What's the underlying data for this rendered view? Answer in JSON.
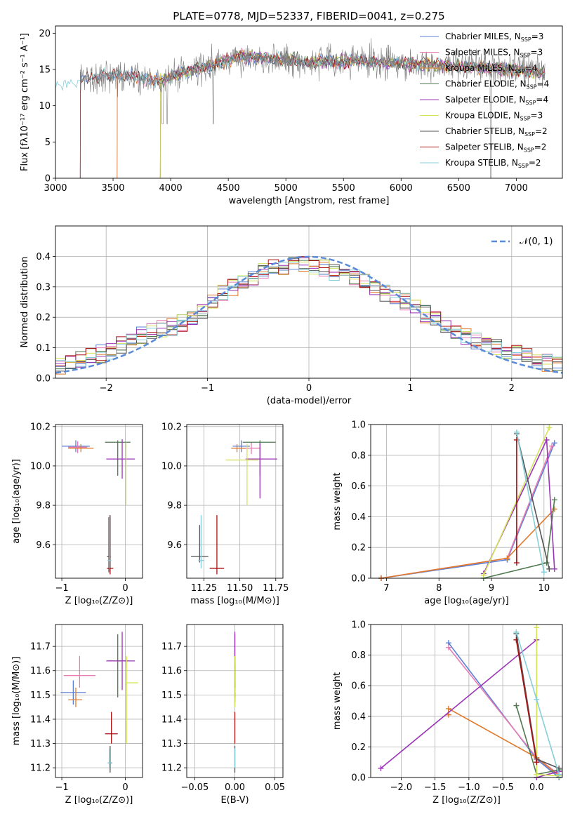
{
  "colors": {
    "chabrier_miles": "#5b7fd4",
    "salpeter_miles": "#e87db5",
    "kroupa_miles": "#e07a2c",
    "chabrier_elodie": "#4f7a4f",
    "salpeter_elodie": "#9b34b5",
    "kroupa_elodie": "#d5e35a",
    "chabrier_stelib": "#555555",
    "salpeter_stelib": "#aa1111",
    "kroupa_stelib": "#86cfd9",
    "normal": "#5b8ad8",
    "grid": "#b0b0b0"
  },
  "chart_data": [
    {
      "id": "spectrum",
      "type": "line",
      "title": "PLATE=0778, MJD=52337, FIBERID=0041, z=0.275",
      "xlabel": "wavelength [Angstrom, rest frame]",
      "ylabel": "Flux [fλ10⁻¹⁷ erg cm⁻² s⁻¹ A⁻¹]",
      "xlim": [
        3000,
        7400
      ],
      "ylim": [
        0,
        21
      ],
      "xticks": [
        "3000",
        "3500",
        "4000",
        "4500",
        "5000",
        "5500",
        "6000",
        "6500",
        "7000"
      ],
      "yticks": [
        "0",
        "5",
        "10",
        "15",
        "20"
      ],
      "grid": false,
      "legend_position": "upper-right",
      "series": [
        {
          "name": "Chabrier MILES, N_SSP=3",
          "legend": "Chabrier MILES, N",
          "sub": "SSP",
          "tail": "=3",
          "start": 3215
        },
        {
          "name": "Salpeter MILES, N_SSP=3",
          "legend": "Salpeter MILES, N",
          "sub": "SSP",
          "tail": "=3",
          "start": 3535
        },
        {
          "name": "Kroupa MILES, N_SSP=4",
          "legend": "Kroupa MILES, N",
          "sub": "SSP",
          "tail": "=4",
          "start": 3535
        },
        {
          "name": "Chabrier ELODIE, N_SSP=4",
          "legend": "Chabrier ELODIE, N",
          "sub": "SSP",
          "tail": "=4",
          "start": 3910
        },
        {
          "name": "Salpeter ELODIE, N_SSP=4",
          "legend": "Salpeter ELODIE, N",
          "sub": "SSP",
          "tail": "=4",
          "start": 3910
        },
        {
          "name": "Kroupa ELODIE, N_SSP=3",
          "legend": "Kroupa ELODIE, N",
          "sub": "SSP",
          "tail": "=3",
          "start": 3910
        },
        {
          "name": "Chabrier STELIB, N_SSP=2",
          "legend": "Chabrier STELIB, N",
          "sub": "SSP",
          "tail": "=2",
          "start": 3215
        },
        {
          "name": "Salpeter STELIB, N_SSP=2",
          "legend": "Salpeter STELIB, N",
          "sub": "SSP",
          "tail": "=2",
          "start": 3215
        },
        {
          "name": "Kroupa STELIB, N_SSP=2",
          "legend": "Kroupa STELIB, N",
          "sub": "SSP",
          "tail": "=2",
          "start": 3000
        }
      ],
      "continuum": [
        [
          3000,
          12.8
        ],
        [
          3200,
          13.5
        ],
        [
          3400,
          14.2
        ],
        [
          3700,
          14.0
        ],
        [
          3900,
          13.5
        ],
        [
          4100,
          14.5
        ],
        [
          4400,
          15.8
        ],
        [
          4600,
          16.8
        ],
        [
          4900,
          16.5
        ],
        [
          5200,
          16.0
        ],
        [
          5600,
          16.2
        ],
        [
          6000,
          15.8
        ],
        [
          6400,
          15.6
        ],
        [
          6800,
          15.2
        ],
        [
          7250,
          14.6
        ]
      ],
      "data_start": 3215,
      "data_end": 7250
    },
    {
      "id": "residuals",
      "type": "histogram",
      "xlabel": "(data-model)/error",
      "ylabel": "Normed distribution",
      "xlim": [
        -2.5,
        2.5
      ],
      "ylim": [
        0,
        0.5
      ],
      "xticks": [
        "-2",
        "-1",
        "0",
        "1",
        "2"
      ],
      "yticks": [
        "0.0",
        "0.1",
        "0.2",
        "0.3",
        "0.4"
      ],
      "grid": true,
      "legend_position": "upper-right",
      "legend": "𝒩(0, 1)",
      "bin_width": 0.1,
      "bin_centers": [
        -2.45,
        -2.35,
        -2.25,
        -2.15,
        -2.05,
        -1.95,
        -1.85,
        -1.75,
        -1.65,
        -1.55,
        -1.45,
        -1.35,
        -1.25,
        -1.15,
        -1.05,
        -0.95,
        -0.85,
        -0.75,
        -0.65,
        -0.55,
        -0.45,
        -0.35,
        -0.25,
        -0.15,
        -0.05,
        0.05,
        0.15,
        0.25,
        0.35,
        0.45,
        0.55,
        0.65,
        0.75,
        0.85,
        0.95,
        1.05,
        1.15,
        1.25,
        1.35,
        1.45,
        1.55,
        1.65,
        1.75,
        1.85,
        1.95,
        2.05,
        2.15,
        2.25,
        2.35,
        2.45
      ],
      "base_hist": [
        0.04,
        0.05,
        0.06,
        0.07,
        0.08,
        0.09,
        0.11,
        0.12,
        0.14,
        0.15,
        0.16,
        0.17,
        0.18,
        0.19,
        0.22,
        0.25,
        0.28,
        0.3,
        0.31,
        0.33,
        0.35,
        0.36,
        0.37,
        0.38,
        0.37,
        0.36,
        0.36,
        0.35,
        0.34,
        0.33,
        0.32,
        0.3,
        0.28,
        0.27,
        0.25,
        0.23,
        0.21,
        0.19,
        0.17,
        0.15,
        0.14,
        0.12,
        0.11,
        0.1,
        0.09,
        0.08,
        0.07,
        0.06,
        0.05,
        0.04
      ]
    },
    {
      "id": "age_vs_Z",
      "type": "errorbar",
      "xlabel": "Z [log₁₀(Z/Z⊙)]",
      "ylabel": "age  [log₁₀(age/yr)]",
      "xlim": [
        -1.1,
        0.27
      ],
      "ylim": [
        9.43,
        10.21
      ],
      "xticks": [
        "-1",
        "0"
      ],
      "yticks": [
        "9.6",
        "9.8",
        "10.0",
        "10.2"
      ],
      "grid": true,
      "points": [
        {
          "s": 0,
          "x": -0.78,
          "y": 10.1,
          "xerr": [
            0.22,
            0.22
          ],
          "yerr": [
            0.03,
            0.03
          ]
        },
        {
          "s": 1,
          "x": -0.75,
          "y": 10.095,
          "xerr": [
            0.15,
            0.15
          ],
          "yerr": [
            0.03,
            0.03
          ]
        },
        {
          "s": 2,
          "x": -0.7,
          "y": 10.09,
          "xerr": [
            0.2,
            0.2
          ],
          "yerr": [
            0.02,
            0.02
          ]
        },
        {
          "s": 3,
          "x": -0.12,
          "y": 10.12,
          "xerr": [
            0.2,
            0.2
          ],
          "yerr": [
            0.17,
            0.01
          ]
        },
        {
          "s": 4,
          "x": -0.05,
          "y": 10.035,
          "xerr": [
            0.25,
            0.2
          ],
          "yerr": [
            0.1,
            0.1
          ]
        },
        {
          "s": 5,
          "x": 0.01,
          "y": 10.1,
          "xerr": [
            0.01,
            0.01
          ],
          "yerr": [
            0.3,
            0.02
          ]
        },
        {
          "s": 6,
          "x": -0.26,
          "y": 9.54,
          "xerr": [
            0.03,
            0.03
          ],
          "yerr": [
            0.08,
            0.2
          ]
        },
        {
          "s": 7,
          "x": -0.24,
          "y": 9.48,
          "xerr": [
            0.05,
            0.05
          ],
          "yerr": [
            0.03,
            0.27
          ]
        },
        {
          "s": 8,
          "x": -0.25,
          "y": 9.52,
          "xerr": [
            0.03,
            0.03
          ],
          "yerr": [
            0.04,
            0.23
          ]
        }
      ]
    },
    {
      "id": "age_vs_mass",
      "type": "errorbar",
      "xlabel": "mass [log₁₀(M/M⊙)]",
      "ylabel": "",
      "xlim": [
        11.13,
        11.8
      ],
      "ylim": [
        9.43,
        10.21
      ],
      "xticks": [
        "11.25",
        "11.50",
        "11.75"
      ],
      "yticks": [
        "9.6",
        "9.8",
        "10.0",
        "10.2"
      ],
      "grid": true,
      "points": [
        {
          "s": 0,
          "x": 11.51,
          "y": 10.1,
          "xerr": [
            0.06,
            0.06
          ],
          "yerr": [
            0.03,
            0.03
          ]
        },
        {
          "s": 1,
          "x": 11.58,
          "y": 10.09,
          "xerr": [
            0.06,
            0.06
          ],
          "yerr": [
            0.03,
            0.03
          ]
        },
        {
          "s": 2,
          "x": 11.48,
          "y": 10.09,
          "xerr": [
            0.04,
            0.06
          ],
          "yerr": [
            0.02,
            0.02
          ]
        },
        {
          "s": 3,
          "x": 11.64,
          "y": 10.12,
          "xerr": [
            0.12,
            0.11
          ],
          "yerr": [
            0.17,
            0.01
          ]
        },
        {
          "s": 4,
          "x": 11.64,
          "y": 10.035,
          "xerr": [
            0.1,
            0.12
          ],
          "yerr": [
            0.2,
            0.08
          ]
        },
        {
          "s": 5,
          "x": 11.55,
          "y": 10.03,
          "xerr": [
            0.15,
            0.08
          ],
          "yerr": [
            0.23,
            0.08
          ]
        },
        {
          "s": 6,
          "x": 11.22,
          "y": 9.54,
          "xerr": [
            0.06,
            0.06
          ],
          "yerr": [
            0.03,
            0.16
          ]
        },
        {
          "s": 7,
          "x": 11.34,
          "y": 9.48,
          "xerr": [
            0.05,
            0.05
          ],
          "yerr": [
            0.03,
            0.27
          ]
        },
        {
          "s": 8,
          "x": 11.23,
          "y": 9.52,
          "xerr": [
            0.02,
            0.02
          ],
          "yerr": [
            0.04,
            0.23
          ]
        }
      ]
    },
    {
      "id": "mass_weight_vs_age",
      "type": "line",
      "xlabel": "age  [log₁₀(age/yr)]",
      "ylabel": "mass weight",
      "xlim": [
        6.7,
        10.35
      ],
      "ylim": [
        0,
        1
      ],
      "xticks": [
        "7",
        "8",
        "9",
        "10"
      ],
      "yticks": [
        "0.0",
        "0.2",
        "0.4",
        "0.6",
        "0.8",
        "1.0"
      ],
      "grid": true,
      "series": [
        {
          "s": 0,
          "x": [
            6.9,
            9.3,
            10.2
          ],
          "y": [
            0.0,
            0.12,
            0.88
          ]
        },
        {
          "s": 1,
          "x": [
            6.9,
            9.3,
            10.15
          ],
          "y": [
            0.0,
            0.13,
            0.86
          ]
        },
        {
          "s": 2,
          "x": [
            6.9,
            9.3,
            10.2
          ],
          "y": [
            0.0,
            0.13,
            0.45
          ]
        },
        {
          "s": 3,
          "x": [
            8.85,
            10.05,
            10.2
          ],
          "y": [
            0.0,
            0.1,
            0.51
          ]
        },
        {
          "s": 4,
          "x": [
            8.85,
            10.05,
            10.2
          ],
          "y": [
            0.03,
            0.9,
            0.06
          ]
        },
        {
          "s": 5,
          "x": [
            8.85,
            10.1
          ],
          "y": [
            0.02,
            0.98
          ]
        },
        {
          "s": 6,
          "x": [
            9.48,
            10.1
          ],
          "y": [
            0.94,
            0.06
          ]
        },
        {
          "s": 7,
          "x": [
            9.48,
            9.48
          ],
          "y": [
            0.9,
            0.1
          ]
        },
        {
          "s": 8,
          "x": [
            9.48,
            10.0
          ],
          "y": [
            0.95,
            0.04
          ]
        }
      ]
    },
    {
      "id": "mass_vs_Z",
      "type": "errorbar",
      "xlabel": "Z [log₁₀(Z/Z⊙)]",
      "ylabel": "mass [log₁₀(M/M⊙)]",
      "xlim": [
        -1.1,
        0.27
      ],
      "ylim": [
        11.16,
        11.79
      ],
      "xticks": [
        "-1",
        "0"
      ],
      "yticks": [
        "11.2",
        "11.3",
        "11.4",
        "11.5",
        "11.6",
        "11.7"
      ],
      "grid": true,
      "points": [
        {
          "s": 0,
          "x": -0.82,
          "y": 11.51,
          "xerr": [
            0.2,
            0.2
          ],
          "yerr": [
            0.05,
            0.05
          ]
        },
        {
          "s": 1,
          "x": -0.72,
          "y": 11.58,
          "xerr": [
            0.25,
            0.25
          ],
          "yerr": [
            0.05,
            0.08
          ]
        },
        {
          "s": 2,
          "x": -0.78,
          "y": 11.48,
          "xerr": [
            0.12,
            0.1
          ],
          "yerr": [
            0.03,
            0.05
          ]
        },
        {
          "s": 3,
          "x": -0.12,
          "y": 11.64,
          "xerr": [
            0.15,
            0.15
          ],
          "yerr": [
            0.15,
            0.11
          ]
        },
        {
          "s": 4,
          "x": -0.05,
          "y": 11.64,
          "xerr": [
            0.25,
            0.2
          ],
          "yerr": [
            0.12,
            0.12
          ]
        },
        {
          "s": 5,
          "x": 0.02,
          "y": 11.55,
          "xerr": [
            0.02,
            0.18
          ],
          "yerr": [
            0.25,
            0.11
          ]
        },
        {
          "s": 6,
          "x": -0.24,
          "y": 11.22,
          "xerr": [
            0.03,
            0.03
          ],
          "yerr": [
            0.04,
            0.07
          ]
        },
        {
          "s": 7,
          "x": -0.22,
          "y": 11.34,
          "xerr": [
            0.1,
            0.1
          ],
          "yerr": [
            0.04,
            0.09
          ]
        },
        {
          "s": 8,
          "x": -0.25,
          "y": 11.22,
          "xerr": [
            0.03,
            0.03
          ],
          "yerr": [
            0.02,
            0.06
          ]
        }
      ]
    },
    {
      "id": "mass_vs_EBV",
      "type": "errorbar",
      "xlabel": "E(B-V)",
      "ylabel": "",
      "xlim": [
        -0.06,
        0.06
      ],
      "ylim": [
        11.16,
        11.79
      ],
      "xticks": [
        "-0.05",
        "0.00",
        "0.05"
      ],
      "yticks": [
        "11.2",
        "11.3",
        "11.4",
        "11.5",
        "11.6",
        "11.7"
      ],
      "grid": true,
      "points": [
        {
          "s": 0,
          "x": 0,
          "y": 11.51,
          "xerr": [
            0,
            0
          ],
          "yerr": [
            0.04,
            0.04
          ]
        },
        {
          "s": 1,
          "x": 0,
          "y": 11.58,
          "xerr": [
            0,
            0
          ],
          "yerr": [
            0.05,
            0.05
          ]
        },
        {
          "s": 2,
          "x": 0,
          "y": 11.48,
          "xerr": [
            0,
            0
          ],
          "yerr": [
            0.03,
            0.03
          ]
        },
        {
          "s": 3,
          "x": 0,
          "y": 11.64,
          "xerr": [
            0,
            0
          ],
          "yerr": [
            0.15,
            0.11
          ]
        },
        {
          "s": 4,
          "x": 0,
          "y": 11.64,
          "xerr": [
            0,
            0
          ],
          "yerr": [
            0.11,
            0.12
          ]
        },
        {
          "s": 5,
          "x": 0,
          "y": 11.55,
          "xerr": [
            0,
            0
          ],
          "yerr": [
            0.1,
            0.11
          ]
        },
        {
          "s": 6,
          "x": 0,
          "y": 11.22,
          "xerr": [
            0,
            0
          ],
          "yerr": [
            0.04,
            0.07
          ]
        },
        {
          "s": 7,
          "x": 0,
          "y": 11.34,
          "xerr": [
            0,
            0
          ],
          "yerr": [
            0.04,
            0.09
          ]
        },
        {
          "s": 8,
          "x": 0,
          "y": 11.22,
          "xerr": [
            0,
            0
          ],
          "yerr": [
            0.02,
            0.06
          ]
        }
      ]
    },
    {
      "id": "mass_weight_vs_Z",
      "type": "line",
      "xlabel": "Z [log₁₀(Z/Z⊙)]",
      "ylabel": "mass weight",
      "xlim": [
        -2.45,
        0.38
      ],
      "ylim": [
        0,
        1
      ],
      "xticks": [
        "-2.0",
        "-1.5",
        "-1.0",
        "-0.5",
        "0.0"
      ],
      "yticks": [
        "0.0",
        "0.2",
        "0.4",
        "0.6",
        "0.8",
        "1.0"
      ],
      "grid": true,
      "series": [
        {
          "s": 0,
          "x": [
            -1.3,
            0.0,
            0.33
          ],
          "y": [
            0.88,
            0.12,
            0.0
          ]
        },
        {
          "s": 1,
          "x": [
            -1.3,
            0.0,
            0.33
          ],
          "y": [
            0.85,
            0.13,
            0.02
          ]
        },
        {
          "s": 2,
          "x": [
            -1.3,
            -1.3,
            0.0,
            0.33
          ],
          "y": [
            0.41,
            0.45,
            0.13,
            0.01
          ]
        },
        {
          "s": 3,
          "x": [
            -0.3,
            0.0,
            0.33
          ],
          "y": [
            0.47,
            0.02,
            0.05
          ]
        },
        {
          "s": 4,
          "x": [
            -2.3,
            0.0,
            0.0,
            0.33
          ],
          "y": [
            0.06,
            0.9,
            0.0,
            0.04
          ]
        },
        {
          "s": 5,
          "x": [
            0.0,
            0.0,
            0.33
          ],
          "y": [
            0.98,
            0.02,
            0.01
          ]
        },
        {
          "s": 6,
          "x": [
            -0.3,
            0.0,
            0.33
          ],
          "y": [
            0.94,
            0.12,
            0.06
          ]
        },
        {
          "s": 7,
          "x": [
            -0.3,
            0.0
          ],
          "y": [
            0.9,
            0.1
          ]
        },
        {
          "s": 8,
          "x": [
            -0.3,
            0.0,
            0.33
          ],
          "y": [
            0.95,
            0.51,
            0.02
          ]
        }
      ]
    }
  ]
}
